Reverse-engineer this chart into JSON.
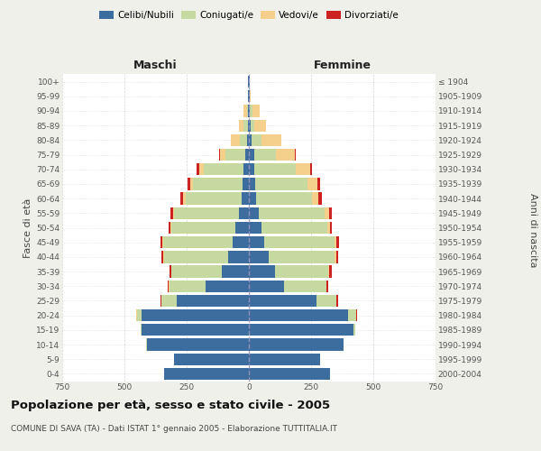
{
  "age_groups": [
    "0-4",
    "5-9",
    "10-14",
    "15-19",
    "20-24",
    "25-29",
    "30-34",
    "35-39",
    "40-44",
    "45-49",
    "50-54",
    "55-59",
    "60-64",
    "65-69",
    "70-74",
    "75-79",
    "80-84",
    "85-89",
    "90-94",
    "95-99",
    "100+"
  ],
  "birth_years": [
    "2000-2004",
    "1995-1999",
    "1990-1994",
    "1985-1989",
    "1980-1984",
    "1975-1979",
    "1970-1974",
    "1965-1969",
    "1960-1964",
    "1955-1959",
    "1950-1954",
    "1945-1949",
    "1940-1944",
    "1935-1939",
    "1930-1934",
    "1925-1929",
    "1920-1924",
    "1915-1919",
    "1910-1914",
    "1905-1909",
    "≤ 1904"
  ],
  "male_celibe": [
    340,
    300,
    410,
    430,
    430,
    290,
    175,
    110,
    85,
    65,
    55,
    40,
    30,
    25,
    20,
    15,
    8,
    5,
    3,
    2,
    2
  ],
  "male_coniugato": [
    0,
    0,
    2,
    5,
    20,
    60,
    145,
    200,
    255,
    280,
    255,
    260,
    225,
    200,
    160,
    80,
    30,
    15,
    5,
    0,
    0
  ],
  "male_vedovo": [
    0,
    0,
    0,
    0,
    2,
    2,
    2,
    2,
    3,
    3,
    5,
    5,
    10,
    10,
    20,
    20,
    35,
    20,
    15,
    2,
    0
  ],
  "male_divorziato": [
    0,
    0,
    0,
    0,
    2,
    3,
    5,
    8,
    8,
    8,
    8,
    10,
    10,
    10,
    10,
    5,
    0,
    0,
    0,
    0,
    0
  ],
  "female_celibe": [
    325,
    285,
    380,
    420,
    400,
    270,
    140,
    105,
    80,
    60,
    50,
    40,
    30,
    25,
    20,
    20,
    10,
    8,
    5,
    2,
    2
  ],
  "female_coniugato": [
    0,
    0,
    2,
    8,
    30,
    80,
    170,
    215,
    265,
    285,
    265,
    265,
    225,
    210,
    170,
    90,
    40,
    15,
    8,
    0,
    0
  ],
  "female_vedovo": [
    0,
    0,
    0,
    0,
    2,
    2,
    2,
    3,
    5,
    8,
    10,
    18,
    25,
    40,
    55,
    75,
    80,
    45,
    30,
    5,
    3
  ],
  "female_divorziato": [
    0,
    0,
    0,
    0,
    3,
    5,
    8,
    10,
    10,
    10,
    10,
    12,
    15,
    12,
    10,
    5,
    0,
    0,
    0,
    0,
    0
  ],
  "color_celibe": "#3d6d9e",
  "color_coniugato": "#c5d9a0",
  "color_vedovo": "#f5d08c",
  "color_divorziato": "#cc2222",
  "xlim": 750,
  "title": "Popolazione per età, sesso e stato civile - 2005",
  "subtitle": "COMUNE DI SAVA (TA) - Dati ISTAT 1° gennaio 2005 - Elaborazione TUTTITALIA.IT",
  "ylabel_left": "Fasce di età",
  "ylabel_right": "Anni di nascita",
  "xlabel_male": "Maschi",
  "xlabel_female": "Femmine",
  "bg_color": "#f0f0eb",
  "plot_bg": "#ffffff"
}
